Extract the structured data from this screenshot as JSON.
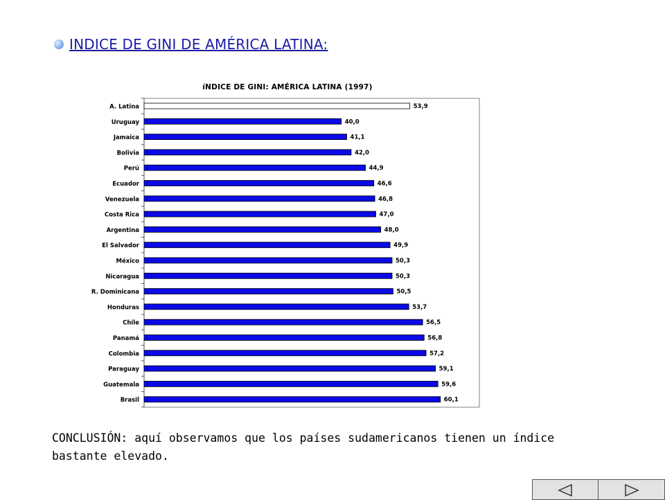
{
  "heading": {
    "text": "INDICE DE GINI DE AMÉRICA LATINA:"
  },
  "chart_data": {
    "type": "bar",
    "orientation": "horizontal",
    "title": "íNDICE DE GINI: AMÉRICA LATINA (1997)",
    "categories": [
      "A. Latina",
      "Uruguay",
      "Jamaica",
      "Bolivia",
      "Perú",
      "Ecuador",
      "Venezuela",
      "Costa Rica",
      "Argentina",
      "El Salvador",
      "México",
      "Nicaragua",
      "R. Dominicana",
      "Honduras",
      "Chile",
      "Panamá",
      "Colombia",
      "Paraguay",
      "Guatemala",
      "Brasil"
    ],
    "values": [
      53.9,
      40.0,
      41.1,
      42.0,
      44.9,
      46.6,
      46.8,
      47.0,
      48.0,
      49.9,
      50.3,
      50.3,
      50.5,
      53.7,
      56.5,
      56.8,
      57.2,
      59.1,
      59.6,
      60.1
    ],
    "value_labels": [
      "53,9",
      "40,0",
      "41,1",
      "42,0",
      "44,9",
      "46,6",
      "46,8",
      "47,0",
      "48,0",
      "49,9",
      "50,3",
      "50,3",
      "50,5",
      "53,7",
      "56,5",
      "56,8",
      "57,2",
      "59,1",
      "59,6",
      "60,1"
    ],
    "colors": {
      "bar": "#0a0ae6",
      "highlight_bar": "#ffffff",
      "bar_stroke": "#000000"
    },
    "highlight_category": "A. Latina",
    "xlim": [
      0,
      68
    ],
    "grid": false,
    "legend": "none"
  },
  "conclusion": {
    "text": "CONCLUSIÓN: aquí observamos que los países sudamericanos tienen un índice bastante elevado."
  },
  "nav": {
    "prev_icon": "triangle-left-icon",
    "next_icon": "triangle-right-icon"
  }
}
